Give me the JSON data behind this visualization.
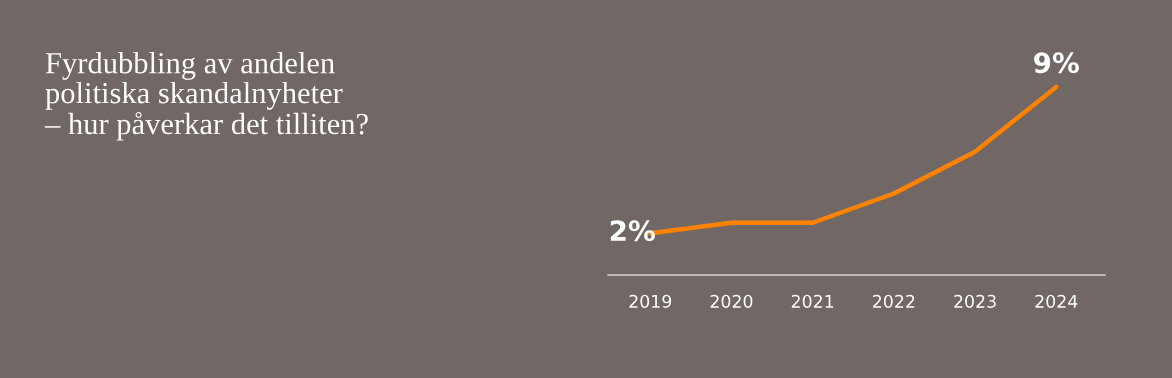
{
  "chart_data": {
    "type": "line",
    "title": "Fyrdubbling av andelen\npolitiska skandalnyheter\n– hur påverkar det tilliten?",
    "categories": [
      "2019",
      "2020",
      "2021",
      "2022",
      "2023",
      "2024"
    ],
    "series": [
      {
        "color": "#ff8200",
        "values": [
          2,
          2.5,
          2.5,
          3.9,
          5.9,
          9
        ],
        "value_labels": [
          "2%",
          null,
          null,
          null,
          null,
          "9%"
        ]
      }
    ],
    "tick_labels": "x",
    "grid": false,
    "legend": false,
    "marker": "none",
    "line_style": "solid"
  }
}
